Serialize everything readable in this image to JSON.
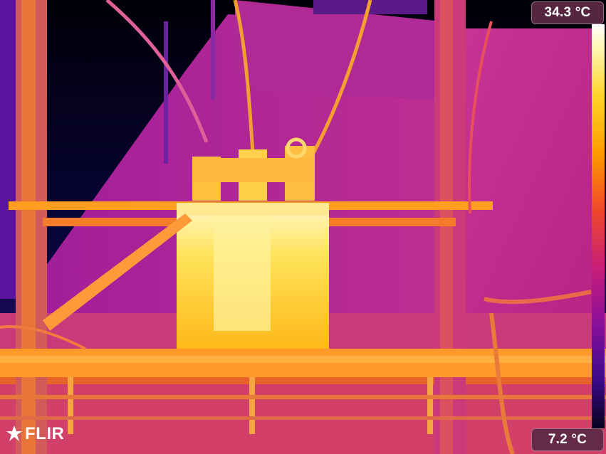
{
  "image": {
    "subject": "thermal-image-of-pole-mounted-transformer",
    "palette": "iron",
    "colors": {
      "hot": "#fff6b0",
      "warm": "#ffb000",
      "mid": "#e0308a",
      "cool": "#8a1aa0",
      "cold": "#0a0420"
    }
  },
  "scale": {
    "max_label": "34.3 °C",
    "min_label": "7.2 °C"
  },
  "brand": {
    "logo_text": "FLIR",
    "logo_icon": "flir-flame-icon"
  }
}
